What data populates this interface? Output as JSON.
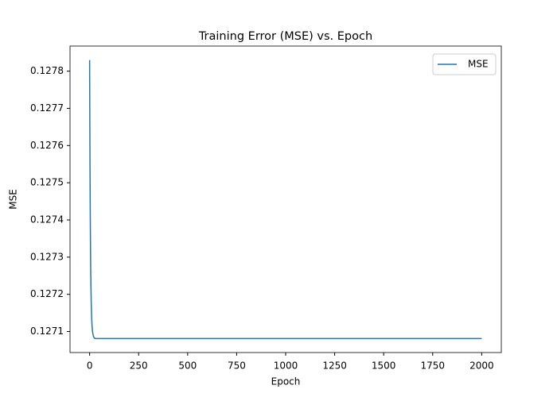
{
  "chart_data": {
    "type": "line",
    "title": "Training Error (MSE) vs. Epoch",
    "xlabel": "Epoch",
    "ylabel": "MSE",
    "x": [
      0,
      1,
      2,
      3,
      4,
      5,
      6,
      8,
      10,
      12,
      15,
      20,
      25,
      30,
      50,
      100,
      500,
      1000,
      1500,
      2000
    ],
    "series": [
      {
        "name": "MSE",
        "color": "#1f77b4",
        "values": [
          0.12783,
          0.127664,
          0.127535,
          0.127435,
          0.127357,
          0.127296,
          0.127248,
          0.127182,
          0.127143,
          0.127118,
          0.127099,
          0.127086,
          0.127082,
          0.127081,
          0.127081,
          0.127081,
          0.127081,
          0.127081,
          0.127081,
          0.127081
        ]
      }
    ],
    "xlim": [
      -100,
      2100
    ],
    "xticks": [
      0,
      250,
      500,
      750,
      1000,
      1250,
      1500,
      1750,
      2000
    ],
    "ylim": [
      0.1270435,
      0.1278675
    ],
    "yticks": [
      0.1271,
      0.1272,
      0.1273,
      0.1274,
      0.1275,
      0.1276,
      0.1277,
      0.1278
    ],
    "grid": false,
    "legend": "upper right"
  }
}
